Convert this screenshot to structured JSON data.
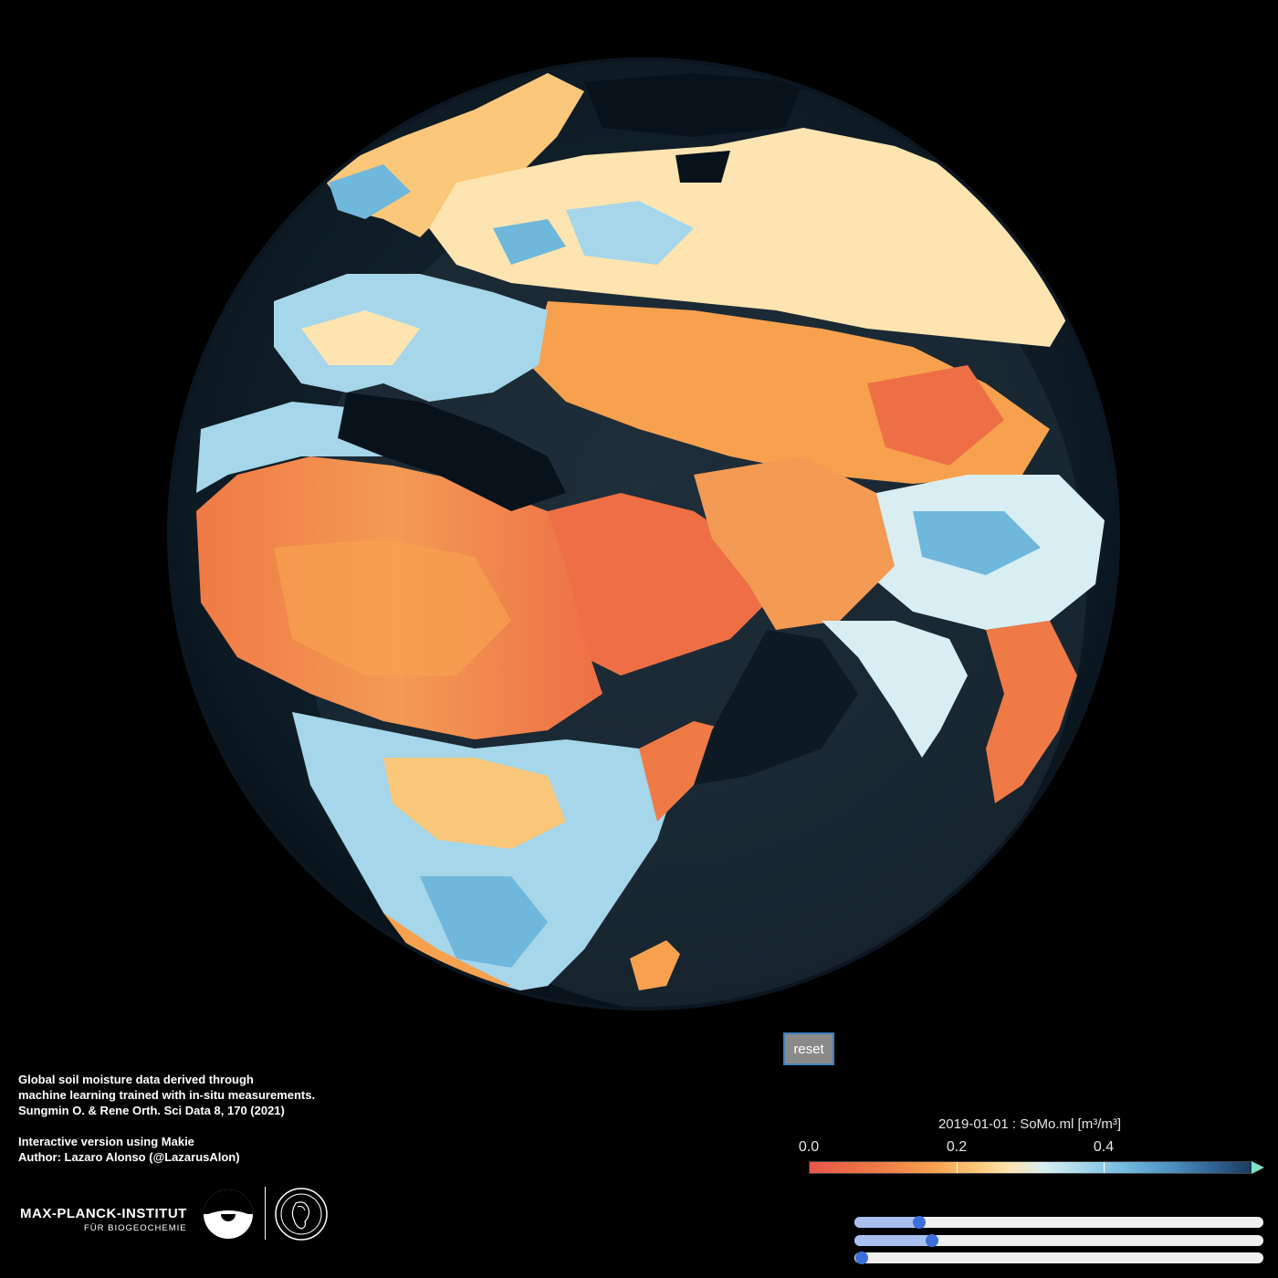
{
  "controls": {
    "reset_label": "reset"
  },
  "credits": {
    "line1": "Global soil moisture data derived through",
    "line2": "machine learning trained with in-situ measurements.",
    "line3": "Sungmin O. & Rene Orth. Sci Data 8, 170 (2021)",
    "line4": "Interactive version using Makie",
    "line5": "Author: Lazaro Alonso (@LazarusAlon)"
  },
  "colorbar": {
    "title": "2019-01-01 : SoMo.ml [m³/m³]",
    "ticks": [
      "0.0",
      "0.2",
      "0.4"
    ],
    "tick_values": [
      0.0,
      0.2,
      0.4
    ],
    "range": [
      0.0,
      0.6
    ],
    "colors": {
      "low": "#e8564a",
      "mid": "#fde4b0",
      "high": "#1b3b5c",
      "highclip": "#7fe3c4"
    }
  },
  "sliders": [
    {
      "name": "slider-1",
      "value_fraction": 0.146
    },
    {
      "name": "slider-2",
      "value_fraction": 0.178
    },
    {
      "name": "slider-3",
      "value_fraction": 0.0
    }
  ],
  "logo": {
    "name": "MAX-PLANCK-INSTITUT",
    "sub": "FÜR BIOGEOCHEMIE"
  },
  "icons": {
    "globe": "globe-icon",
    "mpi_emblem": "mpi-emblem-icon",
    "minerva_seal": "minerva-seal-icon"
  }
}
